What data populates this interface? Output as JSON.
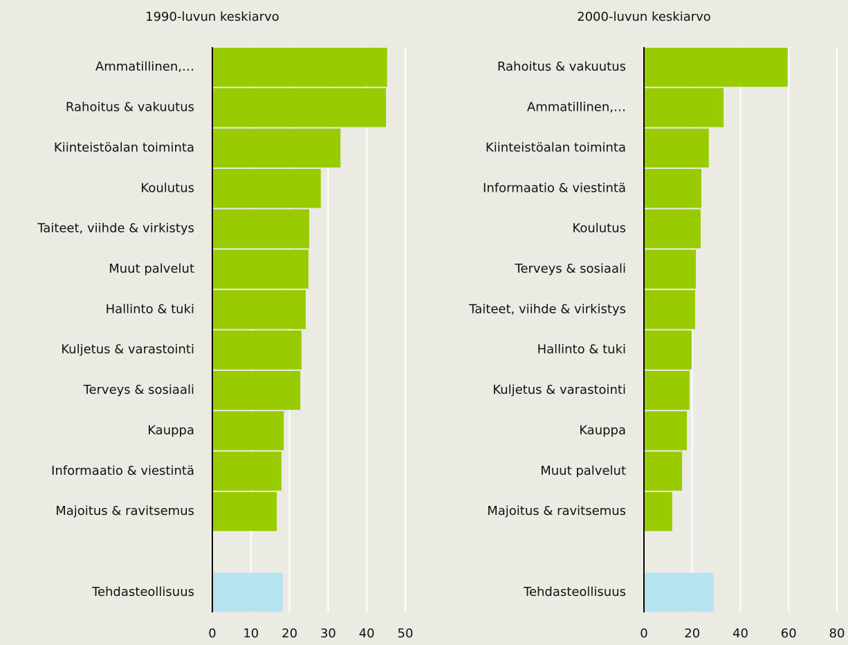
{
  "chart_data": [
    {
      "type": "bar",
      "orientation": "horizontal",
      "title": "1990-luvun keskiarvo",
      "categories": [
        "Ammatillinen,…",
        "Rahoitus & vakuutus",
        "Kiinteistöalan toiminta",
        "Koulutus",
        "Taiteet, viihde & virkistys",
        "Muut palvelut",
        "Hallinto & tuki",
        "Kuljetus & varastointi",
        "Terveys & sosiaali",
        "Kauppa",
        "Informaatio & viestintä",
        "Majoitus &  ravitsemus",
        null,
        "Tehdasteollisuus"
      ],
      "values": [
        45.3,
        45,
        33.2,
        28.1,
        25.1,
        24.9,
        24.2,
        23.1,
        22.8,
        18.5,
        17.9,
        16.7,
        null,
        18.3
      ],
      "colors": [
        "#99cc00",
        "#99cc00",
        "#99cc00",
        "#99cc00",
        "#99cc00",
        "#99cc00",
        "#99cc00",
        "#99cc00",
        "#99cc00",
        "#99cc00",
        "#99cc00",
        "#99cc00",
        null,
        "#b5e3f0"
      ],
      "xlim": [
        0,
        50
      ],
      "xticks": [
        0,
        10,
        20,
        30,
        40,
        50
      ],
      "grid": true
    },
    {
      "type": "bar",
      "orientation": "horizontal",
      "title": "2000-luvun keskiarvo",
      "categories": [
        "Rahoitus & vakuutus",
        "Ammatillinen,…",
        "Kiinteistöalan toiminta",
        "Informaatio & viestintä",
        "Koulutus",
        "Terveys & sosiaali",
        "Taiteet, viihde & virkistys",
        "Hallinto & tuki",
        "Kuljetus & varastointi",
        "Kauppa",
        "Muut palvelut",
        "Majoitus & ravitsemus",
        null,
        "Tehdasteollisuus"
      ],
      "values": [
        59.6,
        33,
        26.9,
        23.8,
        23.5,
        21.5,
        21.2,
        19.8,
        18.9,
        17.8,
        15.8,
        11.7,
        null,
        28.9
      ],
      "colors": [
        "#99cc00",
        "#99cc00",
        "#99cc00",
        "#99cc00",
        "#99cc00",
        "#99cc00",
        "#99cc00",
        "#99cc00",
        "#99cc00",
        "#99cc00",
        "#99cc00",
        "#99cc00",
        null,
        "#b5e3f0"
      ],
      "xlim": [
        0,
        80
      ],
      "xticks": [
        0,
        20,
        40,
        60,
        80
      ],
      "grid": true
    }
  ]
}
